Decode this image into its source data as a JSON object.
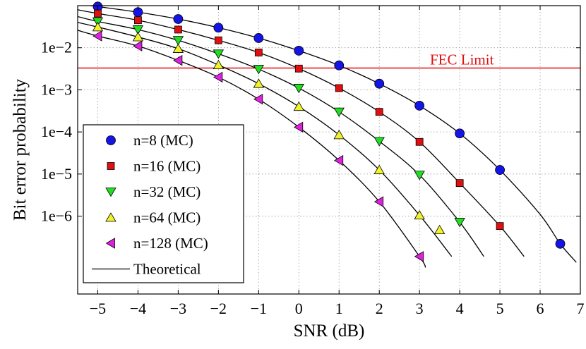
{
  "chart_data": {
    "type": "line",
    "xlabel": "SNR (dB)",
    "ylabel": "Bit error probability",
    "xlim": [
      -5.5,
      7
    ],
    "ylim_log10": [
      -7.85,
      -1.0
    ],
    "y_scale": "log",
    "grid": true,
    "x_ticks": [
      -5,
      -4,
      -3,
      -2,
      -1,
      0,
      1,
      2,
      3,
      4,
      5,
      6,
      7
    ],
    "x_tick_labels": [
      "−5",
      "−4",
      "−3",
      "−2",
      "−1",
      "0",
      "1",
      "2",
      "3",
      "4",
      "5",
      "6",
      "7"
    ],
    "y_ticks": [
      0.01,
      0.001,
      0.0001,
      1e-05,
      1e-06
    ],
    "y_tick_labels": [
      "1e−2",
      "1e−3",
      "1e−4",
      "1e−5",
      "1e−6"
    ],
    "legend_position": "bottom-left",
    "legend_theory_label": "Theoretical",
    "colors": {
      "n8": "#1414e6",
      "n16": "#e01010",
      "n32": "#22dd22",
      "n64": "#f2f22a",
      "n128": "#dd22dd",
      "theory": "#000000",
      "fec": "#e01010"
    },
    "fec_limit": {
      "label": "FEC Limit",
      "value": 0.0033
    },
    "series": [
      {
        "name": "n=8 (MC)",
        "marker": "circle",
        "color": "#1414e6",
        "x": [
          -5,
          -4,
          -3,
          -2,
          -1,
          0,
          1,
          2,
          3,
          4,
          5,
          6.5
        ],
        "y": [
          0.095,
          0.07,
          0.048,
          0.03,
          0.017,
          0.0085,
          0.0038,
          0.0014,
          0.00042,
          9.2e-05,
          1.25e-05,
          2.2e-07
        ]
      },
      {
        "name": "n=16 (MC)",
        "marker": "square",
        "color": "#e01010",
        "x": [
          -5,
          -4,
          -3,
          -2,
          -1,
          0,
          1,
          2,
          3,
          4,
          5
        ],
        "y": [
          0.065,
          0.045,
          0.027,
          0.015,
          0.0077,
          0.0032,
          0.0011,
          0.0003,
          5.8e-05,
          6.1e-06,
          5.8e-07
        ]
      },
      {
        "name": "n=32 (MC)",
        "marker": "triangle-down",
        "color": "#22dd22",
        "x": [
          -5,
          -4,
          -3,
          -2,
          -1,
          0,
          1,
          2,
          3,
          4
        ],
        "y": [
          0.042,
          0.027,
          0.015,
          0.0072,
          0.0031,
          0.0011,
          0.0003,
          6e-05,
          9.5e-06,
          7.2e-07
        ]
      },
      {
        "name": "n=64 (MC)",
        "marker": "triangle-up",
        "color": "#f2f22a",
        "x": [
          -5,
          -4,
          -3,
          -2,
          -1,
          0,
          1,
          2,
          3,
          3.5
        ],
        "y": [
          0.031,
          0.018,
          0.0095,
          0.0039,
          0.0014,
          0.0004,
          8.5e-05,
          1.25e-05,
          1.05e-06,
          4.7e-07
        ]
      },
      {
        "name": "n=128 (MC)",
        "marker": "triangle-left",
        "color": "#dd22dd",
        "x": [
          -5,
          -4,
          -3,
          -2,
          -1,
          0,
          1,
          2,
          3
        ],
        "y": [
          0.019,
          0.011,
          0.005,
          0.002,
          0.0006,
          0.00013,
          2.1e-05,
          2.2e-06,
          1.1e-07
        ]
      }
    ],
    "theoretical": [
      {
        "x": [
          -5.5,
          -5,
          -4,
          -3,
          -2,
          -1,
          0,
          1,
          2,
          3,
          4,
          5,
          6,
          6.5,
          6.9
        ],
        "y": [
          0.11,
          0.095,
          0.07,
          0.048,
          0.03,
          0.017,
          0.0085,
          0.0038,
          0.0014,
          0.00042,
          9.2e-05,
          1.25e-05,
          1.1e-06,
          2.2e-07,
          8e-08
        ]
      },
      {
        "x": [
          -5.5,
          -5,
          -4,
          -3,
          -2,
          -1,
          0,
          1,
          2,
          3,
          4,
          5,
          5.6
        ],
        "y": [
          0.08,
          0.065,
          0.045,
          0.027,
          0.015,
          0.0077,
          0.0032,
          0.0011,
          0.0003,
          5.8e-05,
          6.1e-06,
          5.8e-07,
          1.1e-07
        ]
      },
      {
        "x": [
          -5.5,
          -5,
          -4,
          -3,
          -2,
          -1,
          0,
          1,
          2,
          3,
          4,
          4.6
        ],
        "y": [
          0.055,
          0.042,
          0.027,
          0.015,
          0.0072,
          0.0031,
          0.0011,
          0.0003,
          6e-05,
          9.5e-06,
          7.2e-07,
          1.1e-07
        ]
      },
      {
        "x": [
          -5.5,
          -5,
          -4,
          -3,
          -2,
          -1,
          0,
          1,
          2,
          3,
          3.8
        ],
        "y": [
          0.04,
          0.031,
          0.018,
          0.0095,
          0.0039,
          0.0014,
          0.0004,
          8.5e-05,
          1.25e-05,
          1.05e-06,
          1.1e-07
        ]
      },
      {
        "x": [
          -5.5,
          -5,
          -4,
          -3,
          -2,
          -1,
          0,
          1,
          2,
          3,
          3.15
        ],
        "y": [
          0.026,
          0.019,
          0.011,
          0.005,
          0.002,
          0.0006,
          0.00013,
          2.1e-05,
          2.2e-06,
          1.1e-07,
          6e-08
        ]
      }
    ]
  }
}
